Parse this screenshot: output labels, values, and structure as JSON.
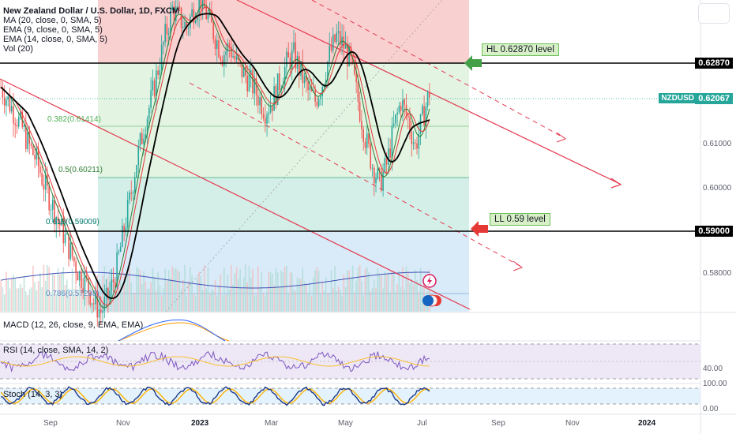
{
  "header": {
    "title": "New Zealand Dollar / U.S. Dollar, 1D, FXCM",
    "indicators": [
      "MA (20, close, 0, SMA, 5)",
      "EMA (9, close, 0, SMA, 5)",
      "EMA (14, close, 0, SMA, 5)",
      "Vol (20)"
    ]
  },
  "panes": {
    "macd_label": "MACD (12, 26, close, 9, EMA, EMA)",
    "rsi_label": "RSI (14, close, SMA, 14, 2)",
    "stoch_label": "Stoch (14, 3, 3)"
  },
  "price_axis": {
    "ticks": [
      "0.61000",
      "0.60000",
      "0.58000"
    ],
    "rsi_tick": "40.00",
    "stoch_ticks": [
      "100.00",
      "0.00"
    ]
  },
  "level_tags": {
    "hl_price": "0.62870",
    "ll_price": "0.59000",
    "current_symbol": "NZDUSD",
    "current_price": "0.62067"
  },
  "annotations": {
    "hl_label": "HL 0.62870 level",
    "ll_label": "LL 0.59 level"
  },
  "fib_labels": [
    "0.382(0.61414)",
    "0.5(0.60211)",
    "0.618(0.59009)",
    "0.786(0.57298)"
  ],
  "time_axis": [
    "Sep",
    "Nov",
    "2023",
    "Mar",
    "May",
    "Jul",
    "Sep",
    "Nov",
    "2024"
  ],
  "colors": {
    "up": "#26a69a",
    "down": "#ef5350",
    "sma20": "#000000",
    "ema9": "#2e7d32",
    "ema14": "#e53935",
    "channel": "#e53950",
    "hl_arrow": "#43a047",
    "ll_arrow": "#e53935"
  },
  "chart_data": {
    "type": "candlestick",
    "title": "New Zealand Dollar / U.S. Dollar, 1D, FXCM",
    "y_range": [
      0.572,
      0.64
    ],
    "levels": [
      {
        "label": "HL 0.62870 level",
        "value": 0.6287
      },
      {
        "label": "LL 0.59 level",
        "value": 0.59
      }
    ],
    "fib_levels": [
      {
        "ratio": 0.382,
        "value": 0.61414
      },
      {
        "ratio": 0.5,
        "value": 0.60211
      },
      {
        "ratio": 0.618,
        "value": 0.59009
      },
      {
        "ratio": 0.786,
        "value": 0.57298
      }
    ],
    "current_price": 0.62067,
    "x_ticks": [
      "Sep",
      "Nov",
      "2023",
      "Mar",
      "May",
      "Jul",
      "Sep",
      "Nov",
      "2024"
    ],
    "close_series": [
      0.621,
      0.618,
      0.615,
      0.612,
      0.608,
      0.605,
      0.6,
      0.596,
      0.592,
      0.588,
      0.584,
      0.58,
      0.578,
      0.574,
      0.572,
      0.575,
      0.58,
      0.588,
      0.596,
      0.605,
      0.612,
      0.618,
      0.625,
      0.632,
      0.638,
      0.636,
      0.634,
      0.638,
      0.64,
      0.636,
      0.632,
      0.628,
      0.63,
      0.626,
      0.624,
      0.622,
      0.619,
      0.616,
      0.618,
      0.622,
      0.626,
      0.628,
      0.624,
      0.62,
      0.618,
      0.622,
      0.628,
      0.632,
      0.63,
      0.626,
      0.618,
      0.61,
      0.604,
      0.6,
      0.604,
      0.612,
      0.618,
      0.614,
      0.608,
      0.614,
      0.62
    ]
  }
}
